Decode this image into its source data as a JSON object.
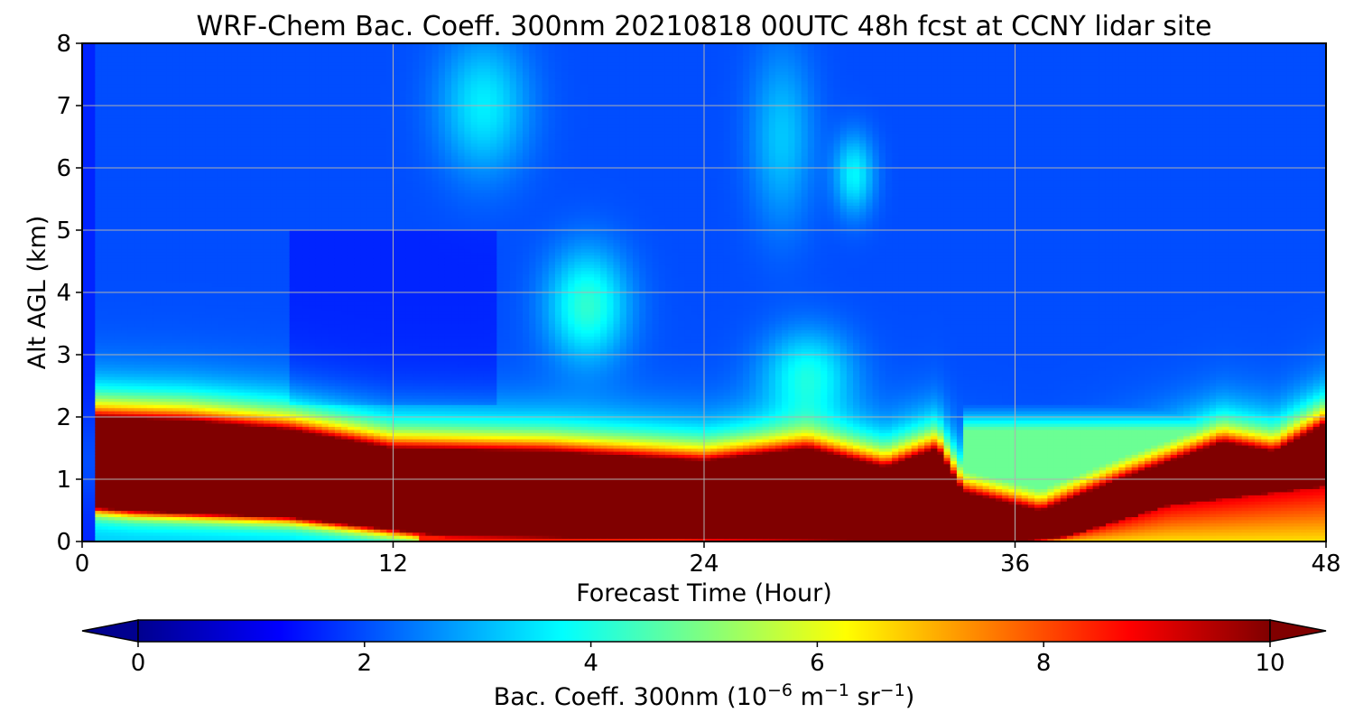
{
  "chart_data": {
    "type": "heatmap",
    "title": "WRF-Chem Bac. Coeff. 300nm  20210818 00UTC 48h fcst at CCNY lidar site",
    "xlabel": "Forecast Time (Hour)",
    "ylabel": "Alt AGL (km)",
    "xlim": [
      0,
      48
    ],
    "ylim": [
      0,
      8
    ],
    "xticks": [
      "0",
      "12",
      "24",
      "36",
      "48"
    ],
    "yticks": [
      "0",
      "1",
      "2",
      "3",
      "4",
      "5",
      "6",
      "7",
      "8"
    ],
    "grid": true,
    "colormap": "jet",
    "colorbar": {
      "label_prefix": "Bac. Coeff. 300nm  (10",
      "label_exp1": "−6",
      "label_mid": " m",
      "label_exp2": "−1",
      "label_mid2": " sr",
      "label_exp3": "−1",
      "label_suffix": ")",
      "min": 0,
      "max": 10,
      "ticks": [
        "0",
        "2",
        "4",
        "6",
        "8",
        "10"
      ],
      "extend": "both"
    },
    "field_description_points": {
      "lower_boundary_km": [
        [
          0,
          1.2
        ],
        [
          0.6,
          0.55
        ],
        [
          2,
          0.5
        ],
        [
          8,
          0.4
        ],
        [
          12,
          0.2
        ],
        [
          14,
          0.1
        ],
        [
          36,
          0.0
        ],
        [
          38,
          0.1
        ],
        [
          42,
          0.6
        ],
        [
          48,
          0.9
        ]
      ],
      "upper_boundary_km": [
        [
          0,
          1.2
        ],
        [
          0.6,
          2.0
        ],
        [
          4,
          1.95
        ],
        [
          8,
          1.8
        ],
        [
          12,
          1.5
        ],
        [
          18,
          1.45
        ],
        [
          24,
          1.3
        ],
        [
          28,
          1.5
        ],
        [
          31,
          1.2
        ],
        [
          33,
          1.5
        ],
        [
          34,
          0.8
        ],
        [
          37,
          0.5
        ],
        [
          40,
          1.0
        ],
        [
          44,
          1.6
        ],
        [
          46,
          1.45
        ],
        [
          48,
          1.9
        ]
      ]
    }
  }
}
